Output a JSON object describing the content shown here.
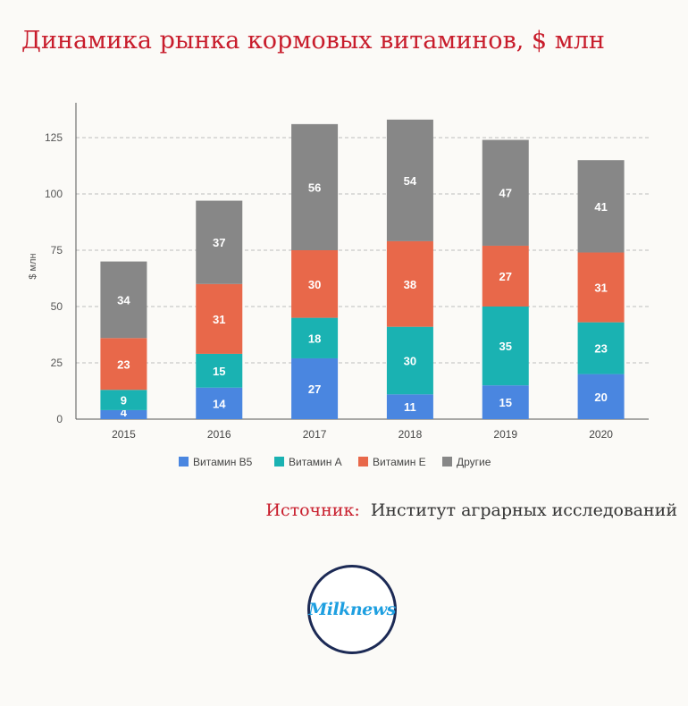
{
  "title": "Динамика рынка кормовых витаминов, $ млн",
  "source": {
    "label": "Источник:",
    "value": "Институт аграрных исследований"
  },
  "logo": {
    "text": "Milknews"
  },
  "chart_data": {
    "type": "bar",
    "stacked": true,
    "categories": [
      "2015",
      "2016",
      "2017",
      "2018",
      "2019",
      "2020"
    ],
    "ylabel": "$ млн",
    "xlabel": "",
    "ylim": [
      0,
      140
    ],
    "yticks": [
      0,
      25,
      50,
      75,
      100,
      125
    ],
    "grid": true,
    "legend_position": "bottom",
    "series": [
      {
        "name": "Витамин B5",
        "color": "#4a86e0",
        "values": [
          4,
          14,
          27,
          11,
          15,
          20
        ]
      },
      {
        "name": "Витамин A",
        "color": "#1ab2b2",
        "values": [
          9,
          15,
          18,
          30,
          35,
          23
        ]
      },
      {
        "name": "Витамин E",
        "color": "#e8684a",
        "values": [
          23,
          31,
          30,
          38,
          27,
          31
        ]
      },
      {
        "name": "Другие",
        "color": "#878787",
        "values": [
          34,
          37,
          56,
          54,
          47,
          41
        ]
      }
    ]
  }
}
